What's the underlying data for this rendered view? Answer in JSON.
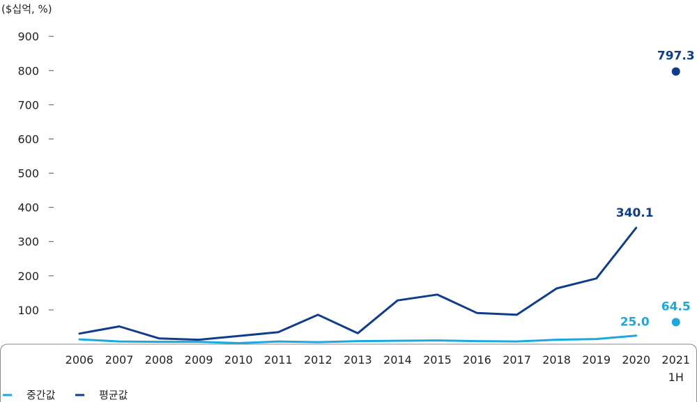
{
  "chart_data": {
    "type": "line",
    "unit_label": "($십억, %)",
    "categories": [
      "2006",
      "2007",
      "2008",
      "2009",
      "2010",
      "2011",
      "2012",
      "2013",
      "2014",
      "2015",
      "2016",
      "2017",
      "2018",
      "2019",
      "2020"
    ],
    "category_extra": {
      "label": "2021",
      "sublabel": "1H"
    },
    "ylim": [
      0,
      900
    ],
    "yticks": [
      100,
      200,
      300,
      400,
      500,
      600,
      700,
      800,
      900
    ],
    "series": [
      {
        "name": "중간값",
        "color": "#1aa9de",
        "values": [
          14,
          8,
          7,
          7,
          3,
          8,
          6,
          9,
          10,
          11,
          9,
          8,
          13,
          15,
          25.0
        ],
        "end_label": "25.0",
        "extra_point": {
          "value": 64.5,
          "label": "64.5"
        }
      },
      {
        "name": "평균값",
        "color": "#0e3d8c",
        "values": [
          31,
          52,
          17,
          13,
          24,
          35,
          86,
          32,
          128,
          145,
          91,
          86,
          163,
          192,
          340.1
        ],
        "end_label": "340.1",
        "extra_point": {
          "value": 797.3,
          "label": "797.3"
        }
      }
    ],
    "legend_placement": "bottom-left"
  }
}
